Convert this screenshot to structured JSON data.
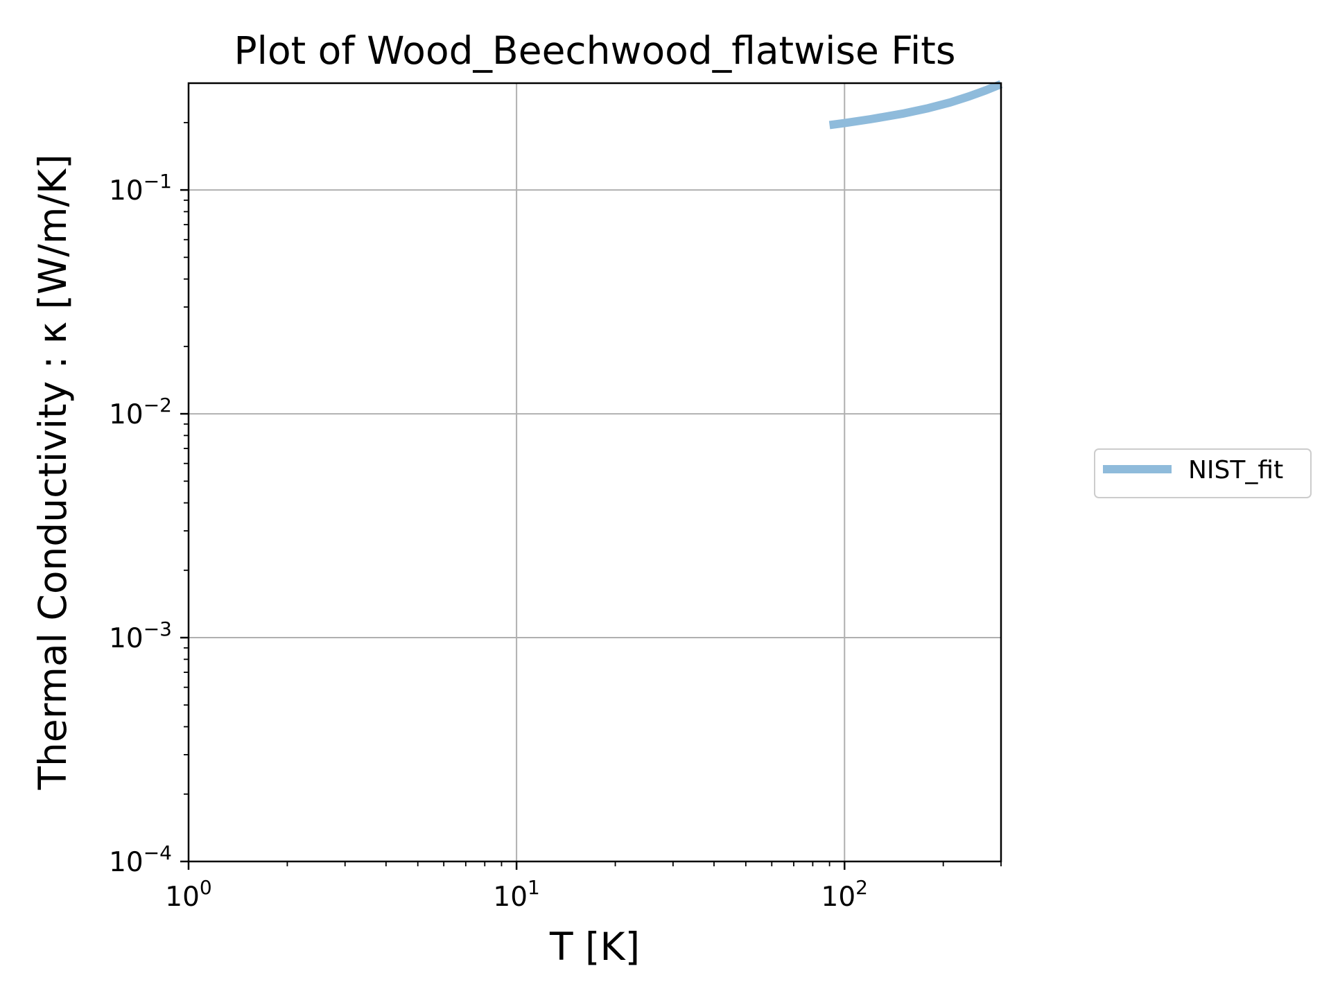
{
  "chart_data": {
    "type": "line",
    "title": "Plot of Wood_Beechwood_flatwise Fits",
    "xlabel": "T [K]",
    "ylabel": "Thermal Conductivity : κ [W/m/K]",
    "xscale": "log",
    "yscale": "log",
    "xlim": [
      1,
      300
    ],
    "ylim": [
      0.0001,
      0.3
    ],
    "grid": true,
    "legend_position": "outside-right",
    "x_ticks": [
      {
        "base": "10",
        "exp": "0"
      },
      {
        "base": "10",
        "exp": "1"
      },
      {
        "base": "10",
        "exp": "2"
      }
    ],
    "y_ticks": [
      {
        "base": "10",
        "exp": "−4"
      },
      {
        "base": "10",
        "exp": "−3"
      },
      {
        "base": "10",
        "exp": "−2"
      },
      {
        "base": "10",
        "exp": "−1"
      }
    ],
    "series": [
      {
        "name": "NIST_fit",
        "color": "#8fbbdb",
        "x": [
          90,
          100,
          120,
          150,
          180,
          210,
          240,
          270,
          300
        ],
        "y": [
          0.195,
          0.199,
          0.207,
          0.219,
          0.232,
          0.246,
          0.262,
          0.279,
          0.297
        ]
      }
    ]
  }
}
